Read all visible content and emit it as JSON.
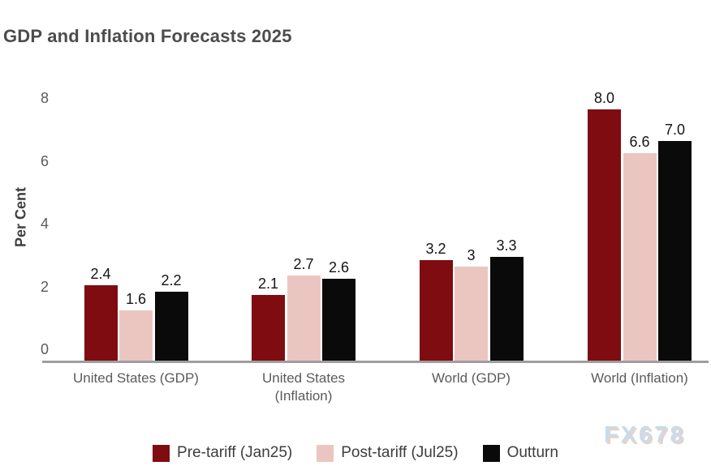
{
  "chart_data": {
    "type": "bar",
    "title": "GDP and Inflation Forecasts 2025",
    "xlabel": "",
    "ylabel": "Per Cent",
    "ylim": [
      0,
      8
    ],
    "yticks": [
      0,
      2,
      4,
      6,
      8
    ],
    "grid": false,
    "legend_position": "bottom",
    "categories": [
      "United States (GDP)",
      "United States (Inflation)",
      "World (GDP)",
      "World (Inflation)"
    ],
    "series": [
      {
        "name": "Pre-tariff (Jan25)",
        "color": "#7E0C11",
        "values": [
          2.4,
          2.1,
          3.2,
          8.0
        ],
        "labels": [
          "2.4",
          "2.1",
          "3.2",
          "8.0"
        ]
      },
      {
        "name": "Post-tariff (Jul25)",
        "color": "#EBC6C1",
        "values": [
          1.6,
          2.7,
          3.0,
          6.6
        ],
        "labels": [
          "1.6",
          "2.7",
          "3",
          "6.6"
        ]
      },
      {
        "name": "Outturn",
        "color": "#0A0A0A",
        "values": [
          2.2,
          2.6,
          3.3,
          7.0
        ],
        "labels": [
          "2.2",
          "2.6",
          "3.3",
          "7.0"
        ]
      }
    ],
    "axis_color": "#9E9E9E",
    "tick_label_color": "#5B5B5B",
    "title_color": "#4C4C4C",
    "value_label_color": "#141414"
  },
  "watermark": {
    "text": "FX678",
    "color": "#C9DBED"
  }
}
